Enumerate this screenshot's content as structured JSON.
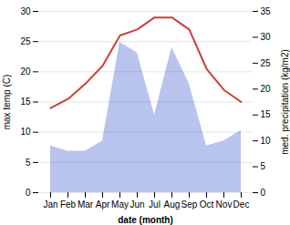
{
  "chart_data": {
    "type": "line",
    "xlabel": "date (month)",
    "ylabel": "max temp (C)",
    "y2label": "med. precipitation (kg/m2)",
    "categories": [
      "Jan",
      "Feb",
      "Mar",
      "Apr",
      "May",
      "Jun",
      "Jul",
      "Aug",
      "Sep",
      "Oct",
      "Nov",
      "Dec"
    ],
    "series": [
      {
        "type": "area",
        "axis": "y2",
        "color": "#b8c4ee",
        "values": [
          9,
          8,
          8,
          10,
          29,
          27,
          15,
          28,
          21,
          9,
          10,
          12
        ]
      },
      {
        "type": "line",
        "color": "#c8413a",
        "values": [
          14,
          15.5,
          18,
          21,
          26,
          27,
          29,
          29,
          27,
          20.5,
          17,
          15
        ]
      }
    ],
    "ylim": [
      0,
      30
    ],
    "yticks": [
      0,
      5,
      10,
      15,
      20,
      25,
      30
    ],
    "y2lim": [
      0,
      35
    ],
    "y2ticks": [
      0,
      5,
      10,
      15,
      20,
      25,
      30,
      35
    ],
    "grid": true
  }
}
